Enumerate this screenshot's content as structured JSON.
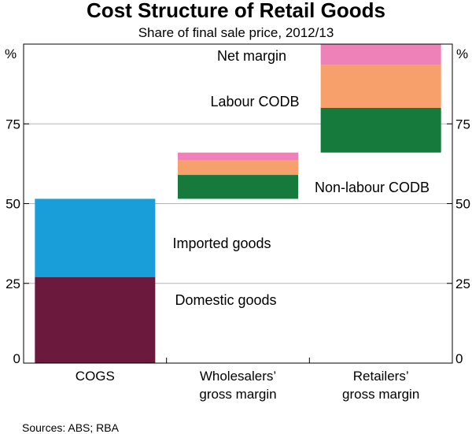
{
  "chart_data": {
    "type": "bar",
    "subtype": "waterfall-stacked",
    "title": "Cost Structure of Retail Goods",
    "subtitle": "Share of final sale price, 2012/13",
    "y_unit_left": "%",
    "y_unit_right": "%",
    "ylim": [
      0,
      100
    ],
    "yticks": [
      0,
      25,
      50,
      75
    ],
    "grid": true,
    "categories": [
      {
        "lines": [
          "COGS"
        ]
      },
      {
        "lines": [
          "Wholesalers’",
          "gross margin"
        ]
      },
      {
        "lines": [
          "Retailers’",
          "gross margin"
        ]
      }
    ],
    "segments": [
      {
        "category": 0,
        "name": "Domestic goods",
        "start": 0,
        "end": 27,
        "color": "#6b1a3d"
      },
      {
        "category": 0,
        "name": "Imported goods",
        "start": 27,
        "end": 51.5,
        "color": "#1a9ed9"
      },
      {
        "category": 1,
        "name": "Non-labour CODB",
        "start": 51.5,
        "end": 59,
        "color": "#157a3b"
      },
      {
        "category": 1,
        "name": "Labour CODB",
        "start": 59,
        "end": 63.5,
        "color": "#f7a06c"
      },
      {
        "category": 1,
        "name": "Net margin",
        "start": 63.5,
        "end": 66,
        "color": "#ee82b8"
      },
      {
        "category": 2,
        "name": "Non-labour CODB",
        "start": 66,
        "end": 80,
        "color": "#157a3b"
      },
      {
        "category": 2,
        "name": "Labour CODB",
        "start": 80,
        "end": 93.5,
        "color": "#f7a06c"
      },
      {
        "category": 2,
        "name": "Net margin",
        "start": 93.5,
        "end": 100,
        "color": "#ee82b8"
      }
    ],
    "annotations": [
      {
        "text": "Net margin",
        "color": "#e8559f"
      },
      {
        "text": "Labour CODB",
        "color": "#f7925a"
      },
      {
        "text": "Non-labour CODB",
        "color": "#157a3b"
      },
      {
        "text": "Imported goods",
        "color": "#1a9ed9"
      },
      {
        "text": "Domestic goods",
        "color": "#6b1a3d"
      }
    ],
    "source": "Sources:  ABS; RBA"
  }
}
